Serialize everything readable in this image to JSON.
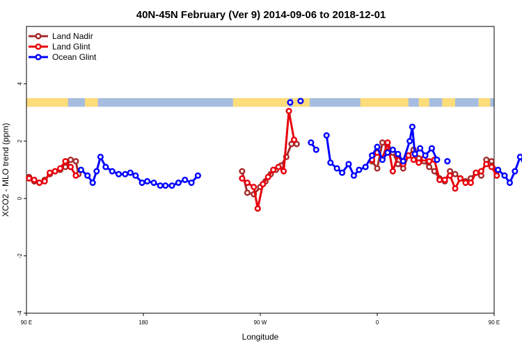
{
  "chart_data": {
    "type": "line",
    "title": "40N-45N February (Ver 9)   2014-09-06 to 2018-12-01",
    "xlabel": "Longitude",
    "ylabel": "XCO2 - MLO trend (ppm)",
    "xlim": [
      90,
      450
    ],
    "ylim": [
      -4,
      6
    ],
    "x_ticks": [
      {
        "value": 90,
        "label": "90 E"
      },
      {
        "value": 180,
        "label": "180"
      },
      {
        "value": 270,
        "label": "90 W"
      },
      {
        "value": 360,
        "label": "0"
      },
      {
        "value": 450,
        "label": "90 E"
      },
      {
        "value": 540,
        "label": "180"
      }
    ],
    "y_ticks": [
      -4,
      -2,
      0,
      2,
      4
    ],
    "grid": false,
    "legend_position": "top-left",
    "land_ocean_strip": {
      "y_range": [
        3.2,
        3.5
      ],
      "land_color": "#fddc7a",
      "ocean_color": "#a6bde0",
      "land_segments": [
        [
          90,
          122
        ],
        [
          135,
          145
        ],
        [
          249,
          292
        ],
        [
          295,
          308
        ],
        [
          347,
          384
        ],
        [
          392,
          400
        ],
        [
          410,
          420
        ],
        [
          438,
          447
        ],
        [
          450,
          482
        ]
      ]
    },
    "series": [
      {
        "name": "Land Nadir",
        "color": "#a52a2a",
        "points": [
          [
            92,
            0.75
          ],
          [
            96,
            0.6
          ],
          [
            100,
            0.55
          ],
          [
            104,
            0.65
          ],
          [
            108,
            0.85
          ],
          [
            112,
            0.95
          ],
          [
            116,
            1.0
          ],
          [
            120,
            1.1
          ],
          [
            124,
            1.35
          ],
          [
            128,
            1.3
          ],
          [
            130,
            0.85
          ],
          [
            256,
            0.95
          ],
          [
            260,
            0.2
          ],
          [
            265,
            0.15
          ],
          [
            270,
            0.4
          ],
          [
            274,
            0.6
          ],
          [
            278,
            0.85
          ],
          [
            282,
            1.0
          ],
          [
            286,
            1.15
          ],
          [
            290,
            1.45
          ],
          [
            294,
            1.9
          ],
          [
            298,
            1.9
          ],
          [
            356,
            1.3
          ],
          [
            360,
            1.05
          ],
          [
            364,
            1.95
          ],
          [
            368,
            1.8
          ],
          [
            372,
            1.6
          ],
          [
            376,
            1.2
          ],
          [
            380,
            1.05
          ],
          [
            384,
            1.5
          ],
          [
            388,
            1.7
          ],
          [
            392,
            1.4
          ],
          [
            396,
            1.3
          ],
          [
            400,
            1.1
          ],
          [
            404,
            0.95
          ],
          [
            408,
            0.7
          ],
          [
            412,
            0.6
          ],
          [
            416,
            0.95
          ],
          [
            420,
            0.85
          ],
          [
            424,
            0.7
          ],
          [
            428,
            0.6
          ],
          [
            432,
            0.7
          ],
          [
            436,
            0.9
          ],
          [
            440,
            0.8
          ],
          [
            444,
            1.35
          ],
          [
            448,
            1.3
          ],
          [
            452,
            0.95
          ]
        ]
      },
      {
        "name": "Land Glint",
        "color": "#e8000b",
        "points": [
          [
            92,
            0.7
          ],
          [
            96,
            0.65
          ],
          [
            100,
            0.55
          ],
          [
            104,
            0.6
          ],
          [
            108,
            0.9
          ],
          [
            112,
            0.95
          ],
          [
            116,
            1.05
          ],
          [
            120,
            1.3
          ],
          [
            124,
            1.1
          ],
          [
            128,
            0.8
          ],
          [
            256,
            0.7
          ],
          [
            260,
            0.55
          ],
          [
            265,
            0.4
          ],
          [
            268,
            -0.35
          ],
          [
            272,
            0.5
          ],
          [
            276,
            0.75
          ],
          [
            280,
            1.0
          ],
          [
            284,
            1.1
          ],
          [
            288,
            0.95
          ],
          [
            292,
            3.05
          ],
          [
            296,
            2.05
          ],
          [
            356,
            1.35
          ],
          [
            360,
            1.6
          ],
          [
            364,
            1.4
          ],
          [
            368,
            1.95
          ],
          [
            372,
            0.95
          ],
          [
            376,
            1.5
          ],
          [
            380,
            1.2
          ],
          [
            384,
            1.5
          ],
          [
            388,
            1.35
          ],
          [
            392,
            1.25
          ],
          [
            396,
            1.4
          ],
          [
            400,
            1.3
          ],
          [
            404,
            1.35
          ],
          [
            408,
            0.65
          ],
          [
            412,
            0.65
          ],
          [
            416,
            0.8
          ],
          [
            420,
            0.35
          ],
          [
            424,
            0.7
          ],
          [
            428,
            0.55
          ],
          [
            432,
            0.55
          ],
          [
            436,
            0.9
          ],
          [
            440,
            0.95
          ],
          [
            444,
            1.2
          ],
          [
            448,
            1.1
          ],
          [
            452,
            0.8
          ]
        ]
      },
      {
        "name": "Ocean Glint",
        "color": "#0000ff",
        "points": [
          [
            132,
            1.0
          ],
          [
            137,
            0.8
          ],
          [
            141,
            0.55
          ],
          [
            144,
            0.95
          ],
          [
            147,
            1.45
          ],
          [
            151,
            1.1
          ],
          [
            156,
            0.95
          ],
          [
            161,
            0.85
          ],
          [
            166,
            0.85
          ],
          [
            170,
            0.9
          ],
          [
            174,
            0.8
          ],
          [
            179,
            0.55
          ],
          [
            183,
            0.6
          ],
          [
            188,
            0.55
          ],
          [
            193,
            0.45
          ],
          [
            197,
            0.45
          ],
          [
            202,
            0.45
          ],
          [
            207,
            0.55
          ],
          [
            212,
            0.65
          ],
          [
            217,
            0.55
          ],
          [
            222,
            0.8
          ],
          [
            293,
            3.35
          ],
          [
            301,
            3.4
          ],
          [
            309,
            1.95
          ],
          [
            313,
            1.7
          ],
          [
            321,
            2.2
          ],
          [
            324,
            1.25
          ],
          [
            329,
            1.05
          ],
          [
            333,
            0.9
          ],
          [
            338,
            1.2
          ],
          [
            342,
            0.8
          ],
          [
            346,
            1.0
          ],
          [
            351,
            1.1
          ],
          [
            356,
            1.5
          ],
          [
            360,
            1.8
          ],
          [
            364,
            1.35
          ],
          [
            368,
            1.6
          ],
          [
            372,
            1.7
          ],
          [
            376,
            1.55
          ],
          [
            380,
            1.3
          ],
          [
            385,
            2.0
          ],
          [
            387,
            2.5
          ],
          [
            389,
            1.55
          ],
          [
            393,
            1.75
          ],
          [
            397,
            1.5
          ],
          [
            402,
            1.75
          ],
          [
            406,
            1.35
          ],
          [
            414,
            1.3
          ],
          [
            453,
            1.0
          ],
          [
            458,
            0.8
          ],
          [
            462,
            0.55
          ],
          [
            466,
            0.95
          ],
          [
            470,
            1.45
          ],
          [
            474,
            1.1
          ],
          [
            478,
            0.95
          ],
          [
            482,
            0.85
          ],
          [
            486,
            0.85
          ],
          [
            490,
            0.9
          ]
        ]
      }
    ]
  }
}
